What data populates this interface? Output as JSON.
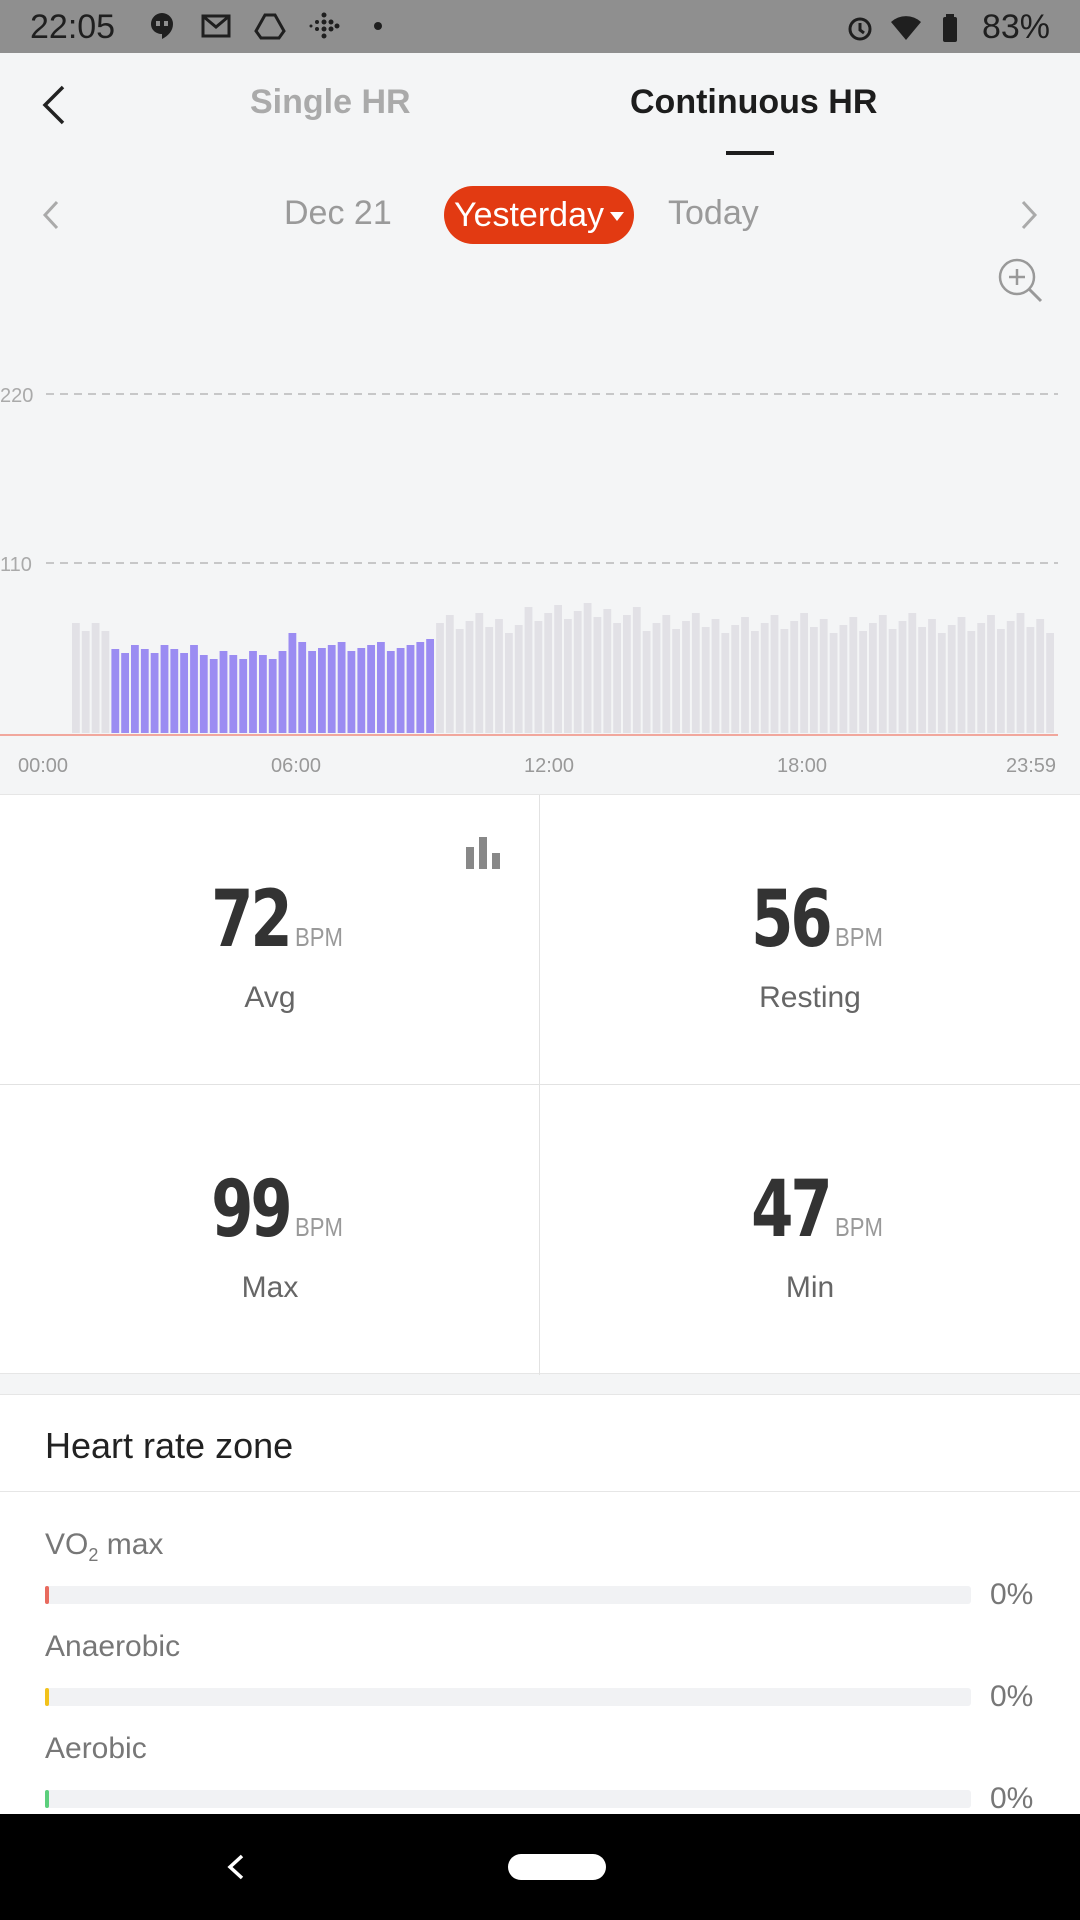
{
  "status_bar": {
    "time": "22:05",
    "battery": "83%",
    "left_icons": [
      "hangouts-icon",
      "gmail-icon",
      "drive-icon",
      "fitbit-icon",
      "dot-icon"
    ],
    "right_icons": [
      "alarm-icon",
      "wifi-icon",
      "battery-icon"
    ]
  },
  "header": {
    "tabs": [
      {
        "label": "Single HR",
        "active": false
      },
      {
        "label": "Continuous HR",
        "active": true
      }
    ]
  },
  "date_nav": {
    "dates": [
      "Dec 21",
      "Yesterday",
      "Today"
    ],
    "selected": "Yesterday"
  },
  "chart_data": {
    "type": "bar",
    "y_ticks": [
      "220",
      "110"
    ],
    "x_ticks": [
      "00:00",
      "06:00",
      "12:00",
      "18:00",
      "23:59"
    ],
    "highlight_color": "#9b8cf2",
    "base_color": "#e2e1e6"
  },
  "stats": {
    "avg": {
      "value": "72",
      "unit": "BPM",
      "label": "Avg"
    },
    "resting": {
      "value": "56",
      "unit": "BPM",
      "label": "Resting"
    },
    "max": {
      "value": "99",
      "unit": "BPM",
      "label": "Max"
    },
    "min": {
      "value": "47",
      "unit": "BPM",
      "label": "Min"
    }
  },
  "zones": {
    "title": "Heart rate zone",
    "items": [
      {
        "name": "VO",
        "sub": "2",
        "suffix": " max",
        "pct": "0%",
        "color": "#e86a5e"
      },
      {
        "name": "Anaerobic",
        "sub": "",
        "suffix": "",
        "pct": "0%",
        "color": "#f2c21b"
      },
      {
        "name": "Aerobic",
        "sub": "",
        "suffix": "",
        "pct": "0%",
        "color": "#5ccf7c"
      }
    ]
  }
}
